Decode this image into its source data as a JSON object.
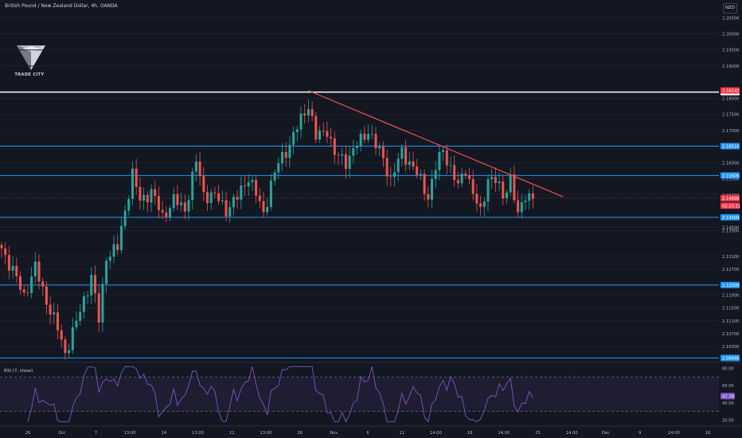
{
  "header": {
    "symbol_title": "British Pound / New Zealand Dollar, 4h, OANDA",
    "currency": "NZD"
  },
  "logo": {
    "text": "TRADE CITY",
    "icon": "trade-city-logo-icon"
  },
  "colors": {
    "background": "#131722",
    "up": "#26a69a",
    "down": "#ef5350",
    "level_line": "#2196f3",
    "white_line": "#ffffff",
    "trendline": "#ef5350",
    "rsi_line": "#7e57c2",
    "price_tag": "#f23645"
  },
  "chart_data": [
    {
      "type": "candlestick",
      "symbol": "GBPNZD",
      "timeframe": "4h",
      "y_axis_ticks": [
        2.205,
        2.2,
        2.195,
        2.19,
        2.18,
        2.175,
        2.17,
        2.16,
        2.155,
        2.15,
        2.14,
        2.139,
        2.131,
        2.127,
        2.119,
        2.115,
        2.111,
        2.107,
        2.103
      ],
      "ylim": [
        2.0986,
        2.2105
      ],
      "x_axis_ticks": [
        "26",
        "Oct",
        "7",
        "13:00",
        "14",
        "13:00",
        "21",
        "13:00",
        "28",
        "Nov",
        "6",
        "11",
        "14:00",
        "18",
        "14:00",
        "25",
        "14:00",
        "Dec",
        "9",
        "14:00",
        "16"
      ],
      "horizontal_levels": [
        {
          "value": 2.18194,
          "label": "2.18194",
          "color": "#ffffff"
        },
        {
          "value": 2.16516,
          "label": "2.16516",
          "color": "#2196f3"
        },
        {
          "value": 2.15606,
          "label": "2.15606",
          "color": "#2196f3"
        },
        {
          "value": 2.14309,
          "label": "2.14309",
          "color": "#2196f3"
        },
        {
          "value": 2.12209,
          "label": "2.12209",
          "color": "#2196f3"
        },
        {
          "value": 2.09946,
          "label": "2.09946",
          "color": "#2196f3"
        }
      ],
      "price_tags": [
        {
          "value": 2.18242,
          "label": "2.18242"
        },
        {
          "value": 2.14909,
          "label": "2.14909"
        },
        {
          "value": 2.14898,
          "label": "2.14898"
        },
        {
          "value": 2.1467,
          "label": "02:33:11"
        }
      ],
      "trendline": {
        "from_index": 82,
        "from_value": 2.1824,
        "to_index": 150,
        "to_value": 2.1495
      },
      "candle_count": 143,
      "anchors": [
        [
          0,
          2.1335
        ],
        [
          3,
          2.1265
        ],
        [
          6,
          2.1188
        ],
        [
          9,
          2.1275
        ],
        [
          12,
          2.1172
        ],
        [
          15,
          2.1085
        ],
        [
          17,
          2.101
        ],
        [
          20,
          2.1105
        ],
        [
          24,
          2.1248
        ],
        [
          26,
          2.1112
        ],
        [
          28,
          2.1312
        ],
        [
          31,
          2.1335
        ],
        [
          33,
          2.1455
        ],
        [
          35,
          2.1565
        ],
        [
          37,
          2.1482
        ],
        [
          40,
          2.1512
        ],
        [
          43,
          2.1432
        ],
        [
          46,
          2.1485
        ],
        [
          49,
          2.1455
        ],
        [
          52,
          2.1605
        ],
        [
          54,
          2.1502
        ],
        [
          57,
          2.1498
        ],
        [
          60,
          2.1455
        ],
        [
          63,
          2.1492
        ],
        [
          66,
          2.1558
        ],
        [
          68,
          2.1502
        ],
        [
          70,
          2.1442
        ],
        [
          72,
          2.1535
        ],
        [
          74,
          2.1598
        ],
        [
          77,
          2.1658
        ],
        [
          80,
          2.1735
        ],
        [
          82,
          2.1782
        ],
        [
          84,
          2.1678
        ],
        [
          87,
          2.1705
        ],
        [
          89,
          2.1625
        ],
        [
          92,
          2.1605
        ],
        [
          95,
          2.1655
        ],
        [
          98,
          2.1702
        ],
        [
          100,
          2.1652
        ],
        [
          102,
          2.1615
        ],
        [
          104,
          2.1545
        ],
        [
          107,
          2.1635
        ],
        [
          110,
          2.1585
        ],
        [
          112,
          2.1545
        ],
        [
          114,
          2.1495
        ],
        [
          116,
          2.1585
        ],
        [
          118,
          2.1642
        ],
        [
          120,
          2.1582
        ],
        [
          122,
          2.1525
        ],
        [
          124,
          2.1585
        ],
        [
          126,
          2.1505
        ],
        [
          128,
          2.1442
        ],
        [
          130,
          2.1555
        ],
        [
          132,
          2.1545
        ],
        [
          134,
          2.1495
        ],
        [
          136,
          2.1555
        ],
        [
          138,
          2.1432
        ],
        [
          140,
          2.1505
        ],
        [
          142,
          2.1493
        ]
      ]
    },
    {
      "type": "line",
      "indicator": "RSI",
      "label": "RSI (7, close)",
      "ylim": [
        15,
        85
      ],
      "y_axis_ticks": [
        80,
        60,
        40,
        20
      ],
      "bands": [
        70,
        30
      ],
      "mid": 50,
      "current_value": 47.78,
      "current_label": "47.78"
    }
  ]
}
